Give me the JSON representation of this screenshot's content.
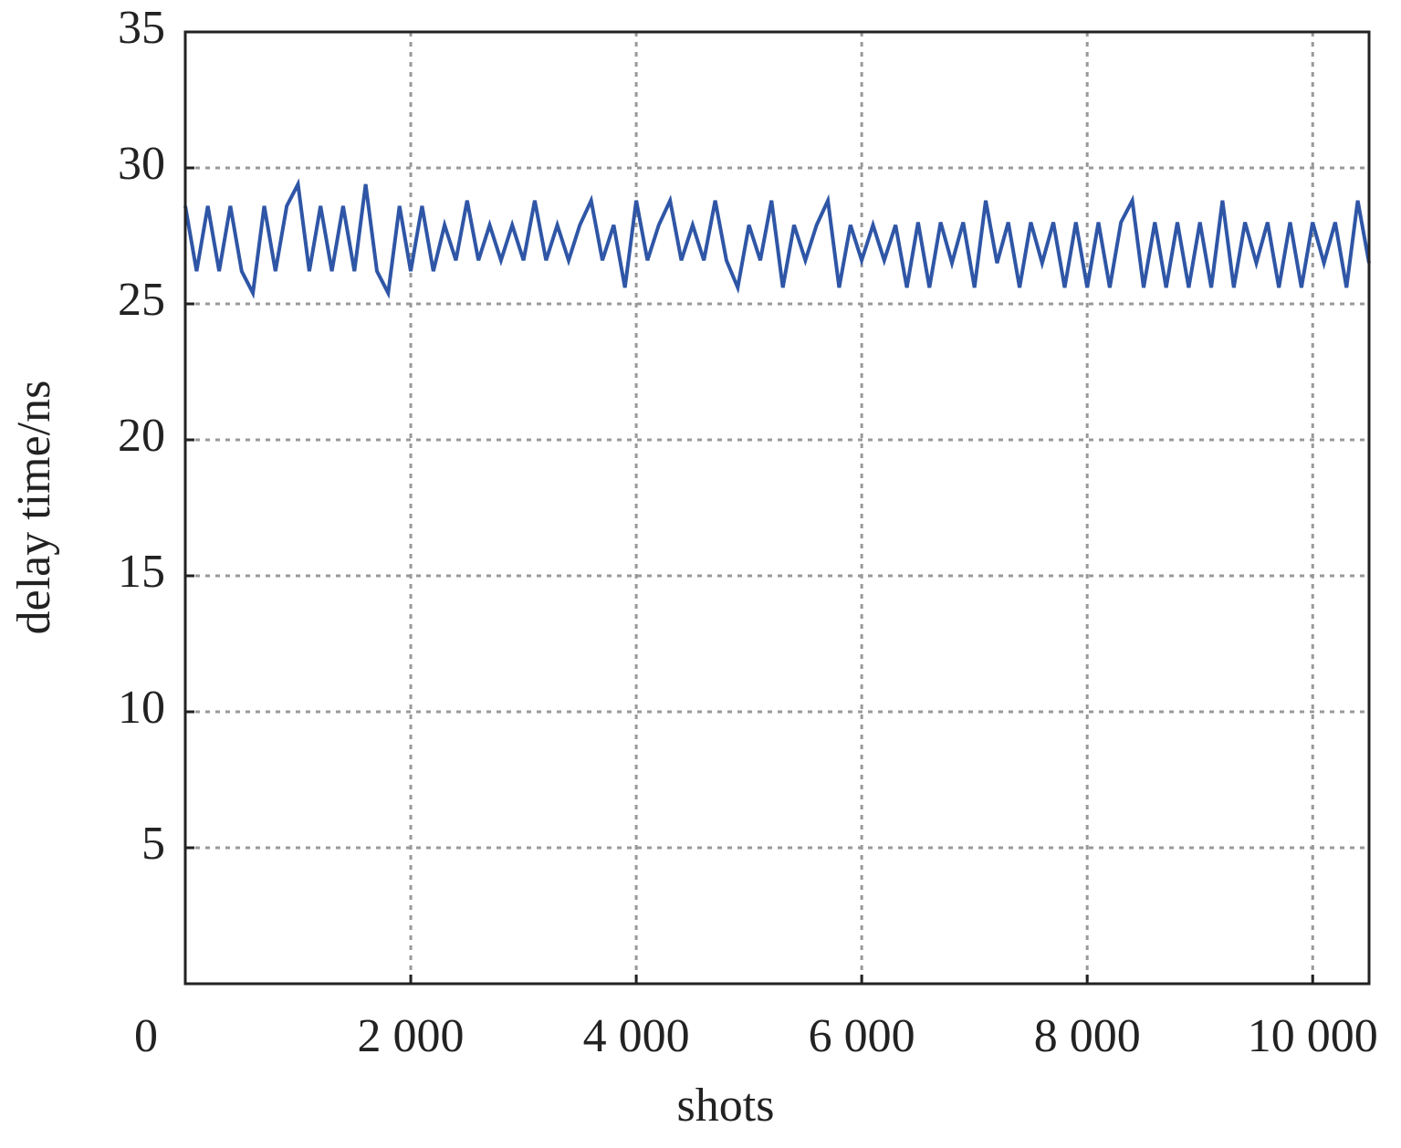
{
  "chart_data": {
    "type": "line",
    "x_label": "shots",
    "y_label": "delay time/ns",
    "x": [
      0,
      100,
      200,
      300,
      400,
      500,
      600,
      700,
      800,
      900,
      1000,
      1100,
      1200,
      1300,
      1400,
      1500,
      1600,
      1700,
      1800,
      1900,
      2000,
      2100,
      2200,
      2300,
      2400,
      2500,
      2600,
      2700,
      2800,
      2900,
      3000,
      3100,
      3200,
      3300,
      3400,
      3500,
      3600,
      3700,
      3800,
      3900,
      4000,
      4100,
      4200,
      4300,
      4400,
      4500,
      4600,
      4700,
      4800,
      4900,
      5000,
      5100,
      5200,
      5300,
      5400,
      5500,
      5600,
      5700,
      5800,
      5900,
      6000,
      6100,
      6200,
      6300,
      6400,
      6500,
      6600,
      6700,
      6800,
      6900,
      7000,
      7100,
      7200,
      7300,
      7400,
      7500,
      7600,
      7700,
      7800,
      7900,
      8000,
      8100,
      8200,
      8300,
      8400,
      8500,
      8600,
      8700,
      8800,
      8900,
      9000,
      9100,
      9200,
      9300,
      9400,
      9500,
      9600,
      9700,
      9800,
      9900,
      10000,
      10100,
      10200,
      10300,
      10400,
      10500
    ],
    "series": [
      {
        "color": "#2f56a6",
        "values": [
          28.6,
          26.2,
          28.6,
          26.2,
          28.6,
          26.2,
          25.4,
          28.6,
          26.2,
          28.6,
          29.4,
          26.2,
          28.6,
          26.2,
          28.6,
          26.2,
          29.4,
          26.2,
          25.4,
          28.6,
          26.2,
          28.6,
          26.2,
          27.9,
          26.6,
          28.8,
          26.6,
          27.9,
          26.6,
          27.9,
          26.6,
          28.8,
          26.6,
          27.9,
          26.6,
          27.9,
          28.8,
          26.6,
          27.9,
          25.6,
          28.8,
          26.6,
          27.9,
          28.8,
          26.6,
          27.9,
          26.6,
          28.8,
          26.6,
          25.6,
          27.9,
          26.6,
          28.8,
          25.6,
          27.9,
          26.6,
          27.9,
          28.8,
          25.6,
          27.9,
          26.6,
          27.9,
          26.6,
          27.9,
          25.6,
          28.0,
          25.6,
          28.0,
          26.5,
          28.0,
          25.6,
          28.8,
          26.5,
          28.0,
          25.6,
          28.0,
          26.5,
          28.0,
          25.6,
          28.0,
          25.6,
          28.0,
          25.6,
          28.0,
          28.8,
          25.6,
          28.0,
          25.6,
          28.0,
          25.6,
          28.0,
          25.6,
          28.8,
          25.6,
          28.0,
          26.5,
          28.0,
          25.6,
          28.0,
          25.6,
          28.0,
          26.5,
          28.0,
          25.6,
          28.8,
          26.5
        ]
      }
    ],
    "xlim": [
      0,
      10500
    ],
    "ylim": [
      0,
      35
    ],
    "xticks": [
      0,
      {
        "value": 2000,
        "label": "2 000"
      },
      {
        "value": 4000,
        "label": "4 000"
      },
      {
        "value": 6000,
        "label": "6 000"
      },
      {
        "value": 8000,
        "label": "8 000"
      },
      {
        "value": 10000,
        "label": "10 000"
      }
    ],
    "yticks": [
      5,
      10,
      15,
      20,
      25,
      30,
      35
    ],
    "grid": true
  }
}
